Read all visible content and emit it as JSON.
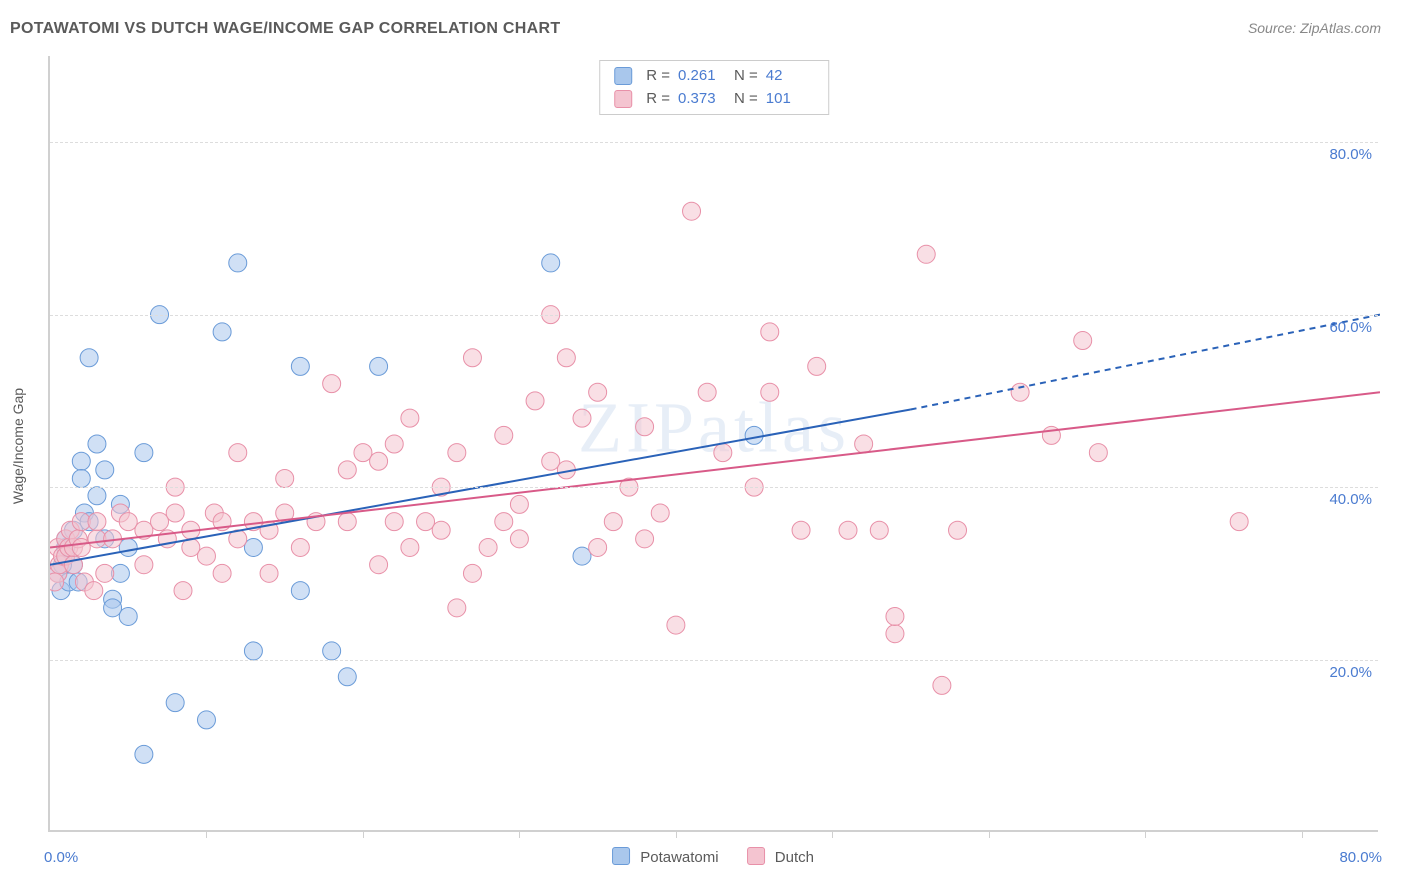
{
  "title": "POTAWATOMI VS DUTCH WAGE/INCOME GAP CORRELATION CHART",
  "source": "Source: ZipAtlas.com",
  "watermark": "ZIPatlas",
  "chart": {
    "type": "scatter",
    "ylabel": "Wage/Income Gap",
    "xlim": [
      0,
      85
    ],
    "ylim": [
      0,
      90
    ],
    "x_origin_label": "0.0%",
    "x_max_label": "80.0%",
    "x_ticks": [
      10,
      20,
      30,
      40,
      50,
      60,
      70,
      80
    ],
    "y_gridlines": [
      20,
      40,
      60,
      80
    ],
    "y_tick_labels": [
      "20.0%",
      "40.0%",
      "60.0%",
      "80.0%"
    ],
    "background_color": "#ffffff",
    "grid_color": "#dddddd",
    "axis_color": "#d0d0d0",
    "tick_label_color": "#4a7bd0",
    "marker_radius": 9,
    "marker_opacity": 0.55,
    "series": [
      {
        "name": "Potawatomi",
        "color_fill": "#a9c7ec",
        "color_stroke": "#6a9bd8",
        "R": "0.261",
        "N": "42",
        "trend": {
          "x1": 0,
          "y1": 31,
          "x2_solid": 55,
          "y2_solid": 49,
          "x2_dash": 85,
          "y2_dash": 60,
          "color": "#2a62b8",
          "width": 2
        },
        "points": [
          [
            0.5,
            30
          ],
          [
            0.7,
            28
          ],
          [
            1,
            32
          ],
          [
            1,
            33
          ],
          [
            1,
            34
          ],
          [
            1.2,
            29
          ],
          [
            1.5,
            35
          ],
          [
            1.5,
            31
          ],
          [
            2,
            43
          ],
          [
            2,
            41
          ],
          [
            2.2,
            37
          ],
          [
            2.5,
            55
          ],
          [
            2.5,
            36
          ],
          [
            3,
            39
          ],
          [
            3,
            45
          ],
          [
            3.5,
            42
          ],
          [
            3.5,
            34
          ],
          [
            4,
            27
          ],
          [
            4,
            26
          ],
          [
            4.5,
            38
          ],
          [
            4.5,
            30
          ],
          [
            5,
            25
          ],
          [
            5,
            33
          ],
          [
            6,
            44
          ],
          [
            6,
            9
          ],
          [
            7,
            60
          ],
          [
            8,
            15
          ],
          [
            10,
            13
          ],
          [
            11,
            58
          ],
          [
            12,
            66
          ],
          [
            13,
            21
          ],
          [
            13,
            33
          ],
          [
            16,
            28
          ],
          [
            16,
            54
          ],
          [
            18,
            21
          ],
          [
            19,
            18
          ],
          [
            21,
            54
          ],
          [
            32,
            66
          ],
          [
            34,
            32
          ],
          [
            45,
            46
          ],
          [
            1.8,
            29
          ],
          [
            0.8,
            31
          ]
        ]
      },
      {
        "name": "Dutch",
        "color_fill": "#f4c4d0",
        "color_stroke": "#e890a8",
        "R": "0.373",
        "N": "101",
        "trend": {
          "x1": 0,
          "y1": 33,
          "x2_solid": 85,
          "y2_solid": 51,
          "color": "#d85a88",
          "width": 2
        },
        "points": [
          [
            0.5,
            30
          ],
          [
            0.5,
            33
          ],
          [
            0.6,
            31
          ],
          [
            0.8,
            32
          ],
          [
            1,
            34
          ],
          [
            1,
            32
          ],
          [
            1.2,
            33
          ],
          [
            1.3,
            35
          ],
          [
            1.5,
            31
          ],
          [
            1.5,
            33
          ],
          [
            1.8,
            34
          ],
          [
            2,
            36
          ],
          [
            2,
            33
          ],
          [
            2.2,
            29
          ],
          [
            3,
            34
          ],
          [
            3,
            36
          ],
          [
            4,
            34
          ],
          [
            4.5,
            37
          ],
          [
            5,
            36
          ],
          [
            6,
            31
          ],
          [
            6,
            35
          ],
          [
            7,
            36
          ],
          [
            7.5,
            34
          ],
          [
            8,
            37
          ],
          [
            8,
            40
          ],
          [
            8.5,
            28
          ],
          [
            9,
            35
          ],
          [
            9,
            33
          ],
          [
            10,
            32
          ],
          [
            10.5,
            37
          ],
          [
            11,
            36
          ],
          [
            11,
            30
          ],
          [
            12,
            34
          ],
          [
            12,
            44
          ],
          [
            13,
            36
          ],
          [
            14,
            35
          ],
          [
            14,
            30
          ],
          [
            15,
            37
          ],
          [
            15,
            41
          ],
          [
            16,
            33
          ],
          [
            17,
            36
          ],
          [
            18,
            52
          ],
          [
            19,
            36
          ],
          [
            19,
            42
          ],
          [
            20,
            44
          ],
          [
            21,
            43
          ],
          [
            21,
            31
          ],
          [
            22,
            36
          ],
          [
            22,
            45
          ],
          [
            23,
            33
          ],
          [
            23,
            48
          ],
          [
            24,
            36
          ],
          [
            25,
            40
          ],
          [
            25,
            35
          ],
          [
            26,
            26
          ],
          [
            26,
            44
          ],
          [
            27,
            30
          ],
          [
            27,
            55
          ],
          [
            28,
            33
          ],
          [
            29,
            36
          ],
          [
            29,
            46
          ],
          [
            30,
            38
          ],
          [
            30,
            34
          ],
          [
            31,
            50
          ],
          [
            32,
            43
          ],
          [
            32,
            60
          ],
          [
            33,
            42
          ],
          [
            33,
            55
          ],
          [
            34,
            48
          ],
          [
            35,
            33
          ],
          [
            35,
            51
          ],
          [
            36,
            36
          ],
          [
            37,
            40
          ],
          [
            38,
            47
          ],
          [
            38,
            34
          ],
          [
            39,
            37
          ],
          [
            40,
            24
          ],
          [
            41,
            72
          ],
          [
            42,
            51
          ],
          [
            43,
            44
          ],
          [
            45,
            40
          ],
          [
            46,
            51
          ],
          [
            46,
            58
          ],
          [
            48,
            35
          ],
          [
            49,
            54
          ],
          [
            51,
            35
          ],
          [
            52,
            45
          ],
          [
            53,
            35
          ],
          [
            54,
            23
          ],
          [
            54,
            25
          ],
          [
            56,
            67
          ],
          [
            57,
            17
          ],
          [
            58,
            35
          ],
          [
            62,
            51
          ],
          [
            64,
            46
          ],
          [
            66,
            57
          ],
          [
            67,
            44
          ],
          [
            76,
            36
          ],
          [
            2.8,
            28
          ],
          [
            3.5,
            30
          ],
          [
            0.3,
            29
          ]
        ]
      }
    ],
    "legend": {
      "items": [
        "Potawatomi",
        "Dutch"
      ]
    }
  }
}
